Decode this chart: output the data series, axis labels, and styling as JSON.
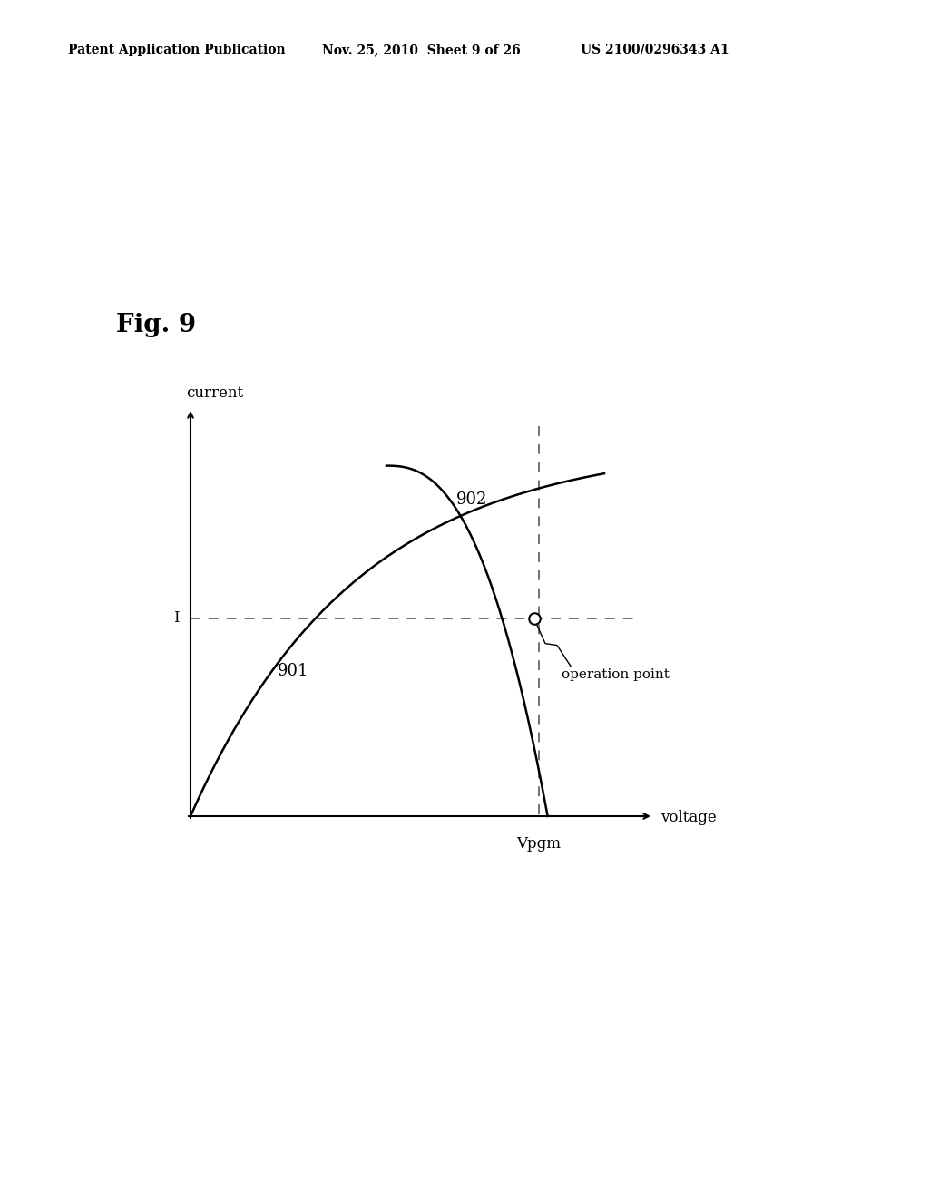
{
  "fig_label": "Fig. 9",
  "header_left": "Patent Application Publication",
  "header_mid": "Nov. 25, 2010  Sheet 9 of 26",
  "header_right": "US 2100/0296343 A1",
  "background_color": "#ffffff",
  "curve901_label": "901",
  "curve902_label": "902",
  "op_label": "operation point",
  "current_label": "current",
  "voltage_label": "voltage",
  "I_label": "I",
  "Vpgm_label": "Vpgm",
  "line_color": "#000000",
  "dashed_color": "#666666",
  "vpgm_x": 7.5,
  "I_y": 5.2,
  "xlim": [
    -0.5,
    11.0
  ],
  "ylim": [
    -1.0,
    11.5
  ]
}
